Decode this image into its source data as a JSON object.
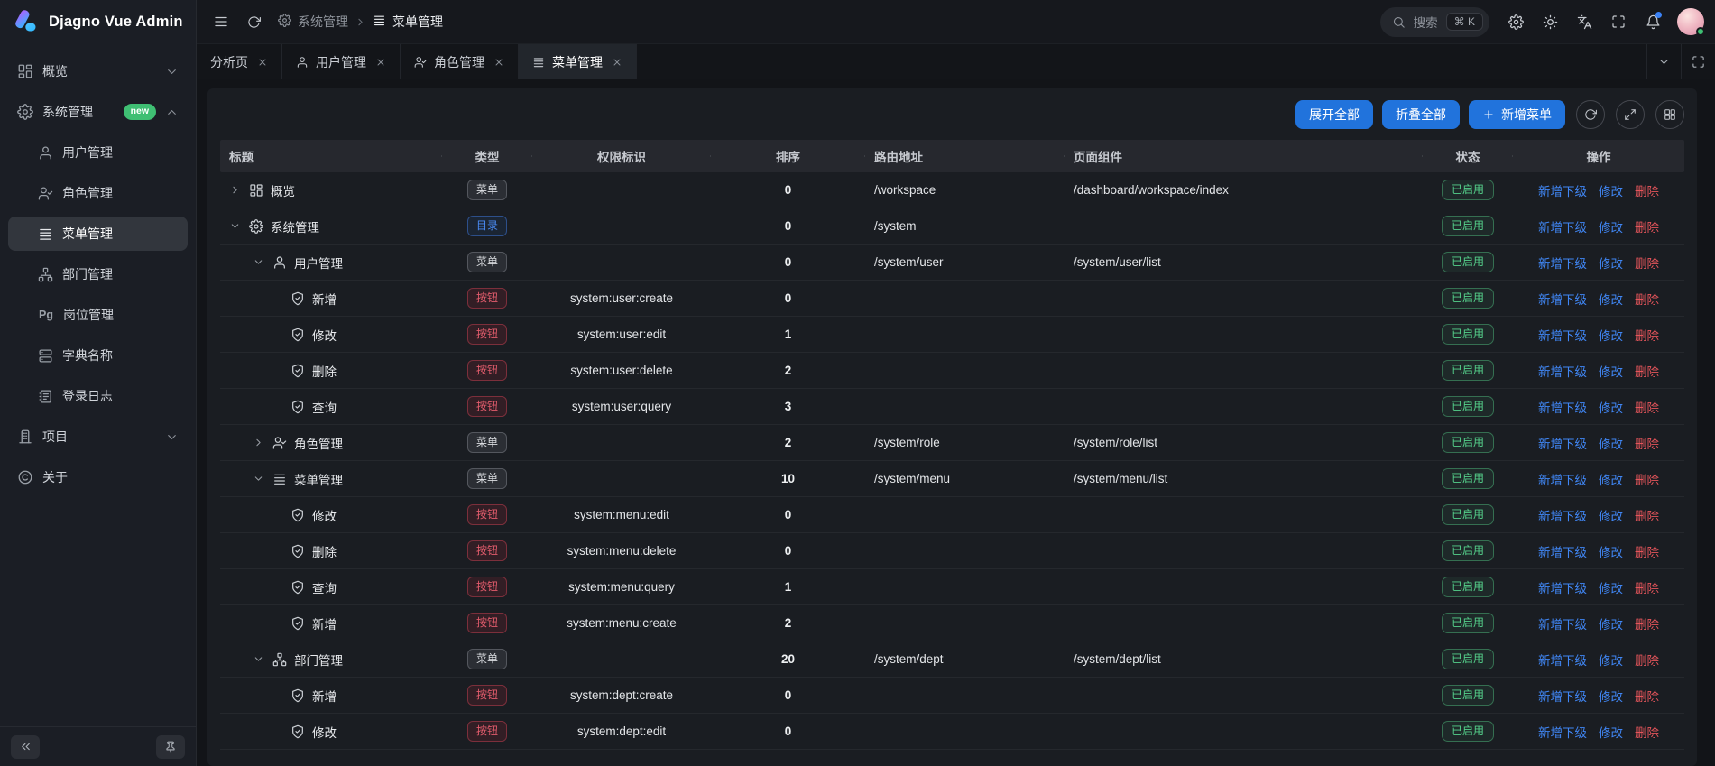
{
  "app": {
    "title": "Djagno Vue Admin"
  },
  "colors": {
    "accent": "#2173dc",
    "success": "#55d18b",
    "danger": "#e5555b",
    "link": "#4086f4",
    "badge_new": "#3fbf73",
    "dir_badge": "#4a8bf4"
  },
  "topbar": {
    "breadcrumb": [
      {
        "label": "系统管理",
        "icon": "gear"
      },
      {
        "label": "菜单管理",
        "icon": "list"
      }
    ],
    "search": {
      "placeholder": "搜索",
      "shortcut": "⌘ K"
    },
    "icons": [
      "gear",
      "sun",
      "languages",
      "maximize",
      "bell"
    ]
  },
  "tabbar": {
    "tabs": [
      {
        "label": "分析页",
        "icon": null,
        "active": false
      },
      {
        "label": "用户管理",
        "icon": "user",
        "active": false
      },
      {
        "label": "角色管理",
        "icon": "user-check",
        "active": false
      },
      {
        "label": "菜单管理",
        "icon": "list",
        "active": true
      }
    ]
  },
  "sidebar": {
    "items": [
      {
        "label": "概览",
        "icon": "dashboard",
        "chevron": "down",
        "children": []
      },
      {
        "label": "系统管理",
        "icon": "gear",
        "chevron": "up",
        "badge": "new",
        "children": [
          {
            "label": "用户管理",
            "icon": "user",
            "active": false
          },
          {
            "label": "角色管理",
            "icon": "user-check",
            "active": false
          },
          {
            "label": "菜单管理",
            "icon": "list",
            "active": true
          },
          {
            "label": "部门管理",
            "icon": "network",
            "active": false
          },
          {
            "label": "岗位管理",
            "icon": "pg-text",
            "active": false
          },
          {
            "label": "字典名称",
            "icon": "server",
            "active": false
          },
          {
            "label": "登录日志",
            "icon": "notebook",
            "active": false
          }
        ]
      },
      {
        "label": "项目",
        "icon": "building",
        "chevron": "down",
        "children": []
      },
      {
        "label": "关于",
        "icon": "copyright",
        "chevron": null,
        "children": []
      }
    ]
  },
  "toolbar": {
    "buttons": [
      {
        "label": "展开全部",
        "icon": null
      },
      {
        "label": "折叠全部",
        "icon": null
      },
      {
        "label": "新增菜单",
        "icon": "plus"
      }
    ],
    "icon_buttons": [
      "refresh",
      "expand",
      "layout"
    ]
  },
  "table": {
    "columns": [
      {
        "label": "标题",
        "align": "left"
      },
      {
        "label": "类型",
        "align": "center"
      },
      {
        "label": "权限标识",
        "align": "center"
      },
      {
        "label": "排序",
        "align": "center"
      },
      {
        "label": "路由地址",
        "align": "left"
      },
      {
        "label": "页面组件",
        "align": "left"
      },
      {
        "label": "状态",
        "align": "center"
      },
      {
        "label": "操作",
        "align": "center"
      }
    ],
    "status_label": "已启用",
    "actions": [
      "新增下级",
      "修改",
      "删除"
    ],
    "rows": [
      {
        "level": 0,
        "expand": "collapsed",
        "icon": "dashboard",
        "title": "概览",
        "type": "菜单",
        "perm": "",
        "order": "0",
        "route": "/workspace",
        "component": "/dashboard/workspace/index"
      },
      {
        "level": 0,
        "expand": "expanded",
        "icon": "gear",
        "title": "系统管理",
        "type": "目录",
        "perm": "",
        "order": "0",
        "route": "/system",
        "component": ""
      },
      {
        "level": 1,
        "expand": "expanded",
        "icon": "user",
        "title": "用户管理",
        "type": "菜单",
        "perm": "",
        "order": "0",
        "route": "/system/user",
        "component": "/system/user/list"
      },
      {
        "level": 2,
        "expand": null,
        "icon": "shield",
        "title": "新增",
        "type": "按钮",
        "perm": "system:user:create",
        "order": "0",
        "route": "",
        "component": ""
      },
      {
        "level": 2,
        "expand": null,
        "icon": "shield",
        "title": "修改",
        "type": "按钮",
        "perm": "system:user:edit",
        "order": "1",
        "route": "",
        "component": ""
      },
      {
        "level": 2,
        "expand": null,
        "icon": "shield",
        "title": "删除",
        "type": "按钮",
        "perm": "system:user:delete",
        "order": "2",
        "route": "",
        "component": ""
      },
      {
        "level": 2,
        "expand": null,
        "icon": "shield",
        "title": "查询",
        "type": "按钮",
        "perm": "system:user:query",
        "order": "3",
        "route": "",
        "component": ""
      },
      {
        "level": 1,
        "expand": "collapsed",
        "icon": "user-check",
        "title": "角色管理",
        "type": "菜单",
        "perm": "",
        "order": "2",
        "route": "/system/role",
        "component": "/system/role/list"
      },
      {
        "level": 1,
        "expand": "expanded",
        "icon": "list",
        "title": "菜单管理",
        "type": "菜单",
        "perm": "",
        "order": "10",
        "route": "/system/menu",
        "component": "/system/menu/list"
      },
      {
        "level": 2,
        "expand": null,
        "icon": "shield",
        "title": "修改",
        "type": "按钮",
        "perm": "system:menu:edit",
        "order": "0",
        "route": "",
        "component": ""
      },
      {
        "level": 2,
        "expand": null,
        "icon": "shield",
        "title": "删除",
        "type": "按钮",
        "perm": "system:menu:delete",
        "order": "0",
        "route": "",
        "component": ""
      },
      {
        "level": 2,
        "expand": null,
        "icon": "shield",
        "title": "查询",
        "type": "按钮",
        "perm": "system:menu:query",
        "order": "1",
        "route": "",
        "component": ""
      },
      {
        "level": 2,
        "expand": null,
        "icon": "shield",
        "title": "新增",
        "type": "按钮",
        "perm": "system:menu:create",
        "order": "2",
        "route": "",
        "component": ""
      },
      {
        "level": 1,
        "expand": "expanded",
        "icon": "network",
        "title": "部门管理",
        "type": "菜单",
        "perm": "",
        "order": "20",
        "route": "/system/dept",
        "component": "/system/dept/list"
      },
      {
        "level": 2,
        "expand": null,
        "icon": "shield",
        "title": "新增",
        "type": "按钮",
        "perm": "system:dept:create",
        "order": "0",
        "route": "",
        "component": ""
      },
      {
        "level": 2,
        "expand": null,
        "icon": "shield",
        "title": "修改",
        "type": "按钮",
        "perm": "system:dept:edit",
        "order": "0",
        "route": "",
        "component": ""
      }
    ]
  }
}
